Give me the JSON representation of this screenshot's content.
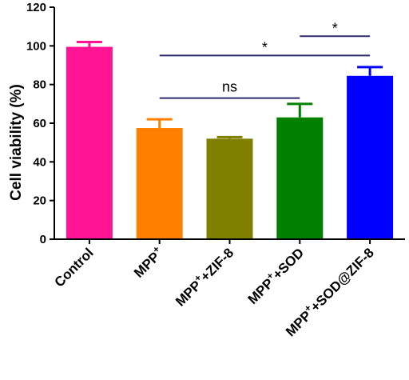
{
  "chart_data": {
    "type": "bar",
    "title": "",
    "xlabel": "",
    "ylabel": "Cell viability (%)",
    "ylim": [
      0,
      120
    ],
    "yticks": [
      0,
      20,
      40,
      60,
      80,
      100,
      120
    ],
    "categories": [
      {
        "main": "Control",
        "sup": "",
        "rest": ""
      },
      {
        "main": "MPP",
        "sup": "+",
        "rest": ""
      },
      {
        "main": "MPP",
        "sup": "+",
        "rest": "+ZIF-8"
      },
      {
        "main": "MPP",
        "sup": "+",
        "rest": "+SOD"
      },
      {
        "main": "MPP",
        "sup": "+",
        "rest": "+SOD@ZIF-8"
      }
    ],
    "values": [
      99.5,
      57.5,
      52,
      63,
      84.5
    ],
    "errors": [
      2.5,
      4.5,
      0.8,
      7,
      4.5
    ],
    "bar_colors": [
      "#ff1493",
      "#ff8000",
      "#808000",
      "#008000",
      "#0000ff"
    ],
    "significance": [
      {
        "from": 3,
        "to": 4,
        "y": 105,
        "label": "*"
      },
      {
        "from": 1,
        "to": 4,
        "y": 95,
        "label": "*"
      },
      {
        "from": 1,
        "to": 3,
        "y": 73,
        "label": "ns"
      }
    ],
    "sig_line_color": "#2b2b6e",
    "axis_color": "#000000"
  }
}
